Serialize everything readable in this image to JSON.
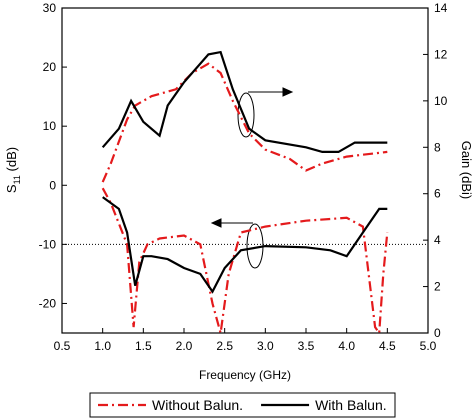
{
  "chart_data": {
    "type": "line",
    "xlabel": "Frequency (GHz)",
    "ylabel": {
      "text": "S",
      "sub": "11",
      "suffix": " (dB)"
    },
    "y2label": "Gain (dBi)",
    "xlim": [
      0.5,
      5.0
    ],
    "xticks": [
      0.5,
      {
        "value": 1.0,
        "label": "1.0"
      },
      1.5,
      {
        "value": 2.0,
        "label": "2.0"
      },
      2.5,
      {
        "value": 3.0,
        "label": "3.0"
      },
      3.5,
      {
        "value": 4.0,
        "label": "4.0"
      },
      4.5,
      {
        "value": 5.0,
        "label": "5.0"
      }
    ],
    "ylim": [
      -25,
      30
    ],
    "yticks": [
      -20,
      -10,
      0,
      10,
      20,
      30
    ],
    "y2lim": [
      0,
      14
    ],
    "y2ticks": [
      0,
      2,
      4,
      6,
      8,
      10,
      12,
      14
    ],
    "reference_line": -10,
    "series": [
      {
        "name": "Without Balun.",
        "color": "#e41a1c",
        "dash": "10 4 2 4",
        "x": [
          1.0,
          1.1,
          1.3,
          1.38,
          1.45,
          1.55,
          1.7,
          2.0,
          2.2,
          2.35,
          2.45,
          2.55,
          2.7,
          3.0,
          3.5,
          4.0,
          4.2,
          4.35,
          4.4,
          4.45,
          4.5
        ],
        "values": [
          -0.5,
          -3,
          -10,
          -24,
          -13,
          -10,
          -9,
          -8.5,
          -10,
          -20,
          -25,
          -15,
          -8,
          -7,
          -6,
          -5.5,
          -7,
          -24,
          -25,
          -15,
          -8
        ]
      },
      {
        "name": "With Balun.",
        "color": "#000000",
        "dash": "none",
        "x": [
          1.0,
          1.2,
          1.3,
          1.4,
          1.5,
          1.6,
          1.8,
          2.0,
          2.2,
          2.35,
          2.5,
          2.7,
          3.0,
          3.5,
          3.8,
          4.0,
          4.2,
          4.4,
          4.5
        ],
        "values": [
          -2,
          -4,
          -8,
          -17,
          -12,
          -12,
          -12.5,
          -14,
          -15,
          -18,
          -14,
          -11,
          -10.3,
          -10.5,
          -11,
          -12,
          -8,
          -4,
          -4
        ]
      },
      {
        "axis": "y2",
        "color": "#e41a1c",
        "dash": "10 4 2 4",
        "x": [
          1.0,
          1.1,
          1.3,
          1.4,
          1.6,
          1.9,
          2.1,
          2.3,
          2.45,
          2.6,
          2.8,
          3.0,
          3.3,
          3.5,
          3.7,
          4.0,
          4.5
        ],
        "values": [
          6.5,
          7.3,
          9.2,
          9.8,
          10.2,
          10.5,
          11.2,
          11.6,
          11.2,
          10,
          8.6,
          7.9,
          7.5,
          7.0,
          7.3,
          7.6,
          7.8
        ]
      },
      {
        "axis": "y2",
        "color": "#000000",
        "dash": "none",
        "x": [
          1.0,
          1.2,
          1.35,
          1.5,
          1.7,
          1.8,
          2.0,
          2.3,
          2.45,
          2.6,
          2.8,
          3.0,
          3.5,
          3.7,
          3.9,
          4.1,
          4.5
        ],
        "values": [
          8.0,
          8.8,
          10.0,
          9.1,
          8.5,
          9.8,
          10.8,
          12.0,
          12.1,
          10.5,
          8.8,
          8.3,
          8.0,
          7.8,
          7.8,
          8.2,
          8.2
        ]
      }
    ]
  }
}
